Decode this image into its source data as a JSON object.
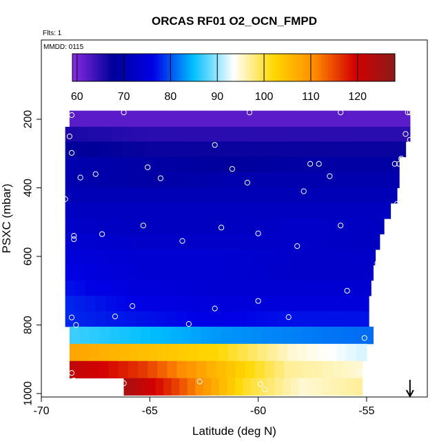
{
  "chart_data": {
    "type": "heatmap",
    "title": "ORCAS RF01 O2_OCN_FMPD",
    "flts_label": "Flts: 1",
    "mmdd_label": "MMDD: 0115",
    "xlabel": "Latitude (deg N)",
    "ylabel": "PSXC (mbar)",
    "xlim": [
      -70,
      -52.2
    ],
    "ylim_inverted": [
      1010,
      0
    ],
    "x_ticks": [
      -70,
      -65,
      -60,
      -55
    ],
    "y_ticks": [
      200,
      400,
      600,
      800,
      1000
    ],
    "colorbar": {
      "min": 59,
      "max": 128,
      "ticks": [
        60,
        70,
        80,
        90,
        100,
        110,
        120
      ],
      "colors": [
        "#8a2be2",
        "#000099",
        "#0000e6",
        "#00bfff",
        "#ffffff",
        "#ffd700",
        "#ff8c00",
        "#d40000",
        "#8b1a1a"
      ]
    },
    "rows": [
      {
        "p_top": 175,
        "p_bot": 222,
        "lat_min": -68.7,
        "lat_max": -53.0,
        "values": [
          62,
          62,
          62,
          62,
          62
        ]
      },
      {
        "p_top": 222,
        "p_bot": 265,
        "lat_min": -68.9,
        "lat_max": -53.0,
        "values": [
          66,
          65,
          65,
          65,
          65
        ]
      },
      {
        "p_top": 265,
        "p_bot": 310,
        "lat_min": -68.9,
        "lat_max": -53.2,
        "values": [
          68,
          67,
          67,
          67,
          67
        ]
      },
      {
        "p_top": 310,
        "p_bot": 355,
        "lat_min": -68.9,
        "lat_max": -53.5,
        "values": [
          70,
          69,
          68,
          69,
          69
        ]
      },
      {
        "p_top": 355,
        "p_bot": 400,
        "lat_min": -68.9,
        "lat_max": -53.5,
        "values": [
          70,
          69,
          70,
          70,
          70
        ]
      },
      {
        "p_top": 400,
        "p_bot": 445,
        "lat_min": -68.9,
        "lat_max": -53.6,
        "values": [
          71,
          71,
          71,
          71,
          71
        ]
      },
      {
        "p_top": 445,
        "p_bot": 490,
        "lat_min": -68.9,
        "lat_max": -53.9,
        "values": [
          72,
          72,
          72,
          72,
          72
        ]
      },
      {
        "p_top": 490,
        "p_bot": 535,
        "lat_min": -68.9,
        "lat_max": -54.2,
        "values": [
          73,
          72,
          72,
          73,
          72
        ]
      },
      {
        "p_top": 535,
        "p_bot": 580,
        "lat_min": -68.9,
        "lat_max": -54.4,
        "values": [
          74,
          73,
          73,
          73,
          72
        ]
      },
      {
        "p_top": 580,
        "p_bot": 625,
        "lat_min": -68.9,
        "lat_max": -54.6,
        "values": [
          75,
          74,
          74,
          73,
          73
        ]
      },
      {
        "p_top": 625,
        "p_bot": 670,
        "lat_min": -68.9,
        "lat_max": -54.7,
        "values": [
          76,
          74,
          74,
          73,
          73
        ]
      },
      {
        "p_top": 670,
        "p_bot": 715,
        "lat_min": -68.9,
        "lat_max": -54.8,
        "values": [
          77,
          75,
          74,
          74,
          74
        ]
      },
      {
        "p_top": 715,
        "p_bot": 760,
        "lat_min": -68.9,
        "lat_max": -54.9,
        "values": [
          78,
          76,
          75,
          75,
          75
        ]
      },
      {
        "p_top": 760,
        "p_bot": 805,
        "lat_min": -68.9,
        "lat_max": -54.9,
        "values": [
          78,
          77,
          76,
          77,
          77
        ]
      },
      {
        "p_top": 805,
        "p_bot": 855,
        "lat_min": -68.7,
        "lat_max": -54.7,
        "values": [
          87,
          85,
          83,
          82,
          81
        ]
      },
      {
        "p_top": 855,
        "p_bot": 905,
        "lat_min": -68.7,
        "lat_max": -55.0,
        "values": [
          108,
          105,
          102,
          95,
          92
        ]
      },
      {
        "p_top": 905,
        "p_bot": 955,
        "lat_min": -68.7,
        "lat_max": -55.2,
        "values": [
          122,
          116,
          106,
          97,
          95
        ]
      },
      {
        "p_top": 955,
        "p_bot": 1005,
        "lat_min": -66.2,
        "lat_max": -55.2,
        "values": [
          125,
          114,
          101,
          95,
          97
        ]
      }
    ],
    "points": [
      [
        -68.6,
        188
      ],
      [
        -66.2,
        180
      ],
      [
        -60.4,
        180
      ],
      [
        -56.2,
        180
      ],
      [
        -53.1,
        180
      ],
      [
        -53.0,
        180
      ],
      [
        -68.7,
        250
      ],
      [
        -62.0,
        275
      ],
      [
        -53.2,
        243
      ],
      [
        -53.0,
        260
      ],
      [
        -68.6,
        298
      ],
      [
        -68.2,
        370
      ],
      [
        -67.5,
        360
      ],
      [
        -65.1,
        340
      ],
      [
        -64.5,
        372
      ],
      [
        -61.2,
        345
      ],
      [
        -60.5,
        385
      ],
      [
        -57.6,
        330
      ],
      [
        -57.2,
        330
      ],
      [
        -56.7,
        366
      ],
      [
        -53.7,
        330
      ],
      [
        -53.5,
        330
      ],
      [
        -53.4,
        315
      ],
      [
        -57.9,
        410
      ],
      [
        -68.9,
        433
      ],
      [
        -53.6,
        447
      ],
      [
        -68.5,
        540
      ],
      [
        -68.5,
        550
      ],
      [
        -67.2,
        535
      ],
      [
        -65.3,
        510
      ],
      [
        -63.5,
        555
      ],
      [
        -61.7,
        516
      ],
      [
        -60.0,
        533
      ],
      [
        -56.2,
        510
      ],
      [
        -58.2,
        570
      ],
      [
        -54.5,
        620
      ],
      [
        -55.9,
        700
      ],
      [
        -60.0,
        730
      ],
      [
        -68.6,
        778
      ],
      [
        -68.4,
        800
      ],
      [
        -66.6,
        775
      ],
      [
        -65.8,
        745
      ],
      [
        -63.2,
        797
      ],
      [
        -62.0,
        752
      ],
      [
        -58.6,
        777
      ],
      [
        -55.1,
        838
      ],
      [
        -55.3,
        937
      ],
      [
        -68.6,
        940
      ],
      [
        -68.5,
        962
      ],
      [
        -66.2,
        970
      ],
      [
        -62.7,
        965
      ],
      [
        -59.9,
        972
      ],
      [
        -59.7,
        988
      ]
    ],
    "arrow": {
      "lat": -53.0,
      "from_p": 960,
      "to_p": 1008
    }
  }
}
